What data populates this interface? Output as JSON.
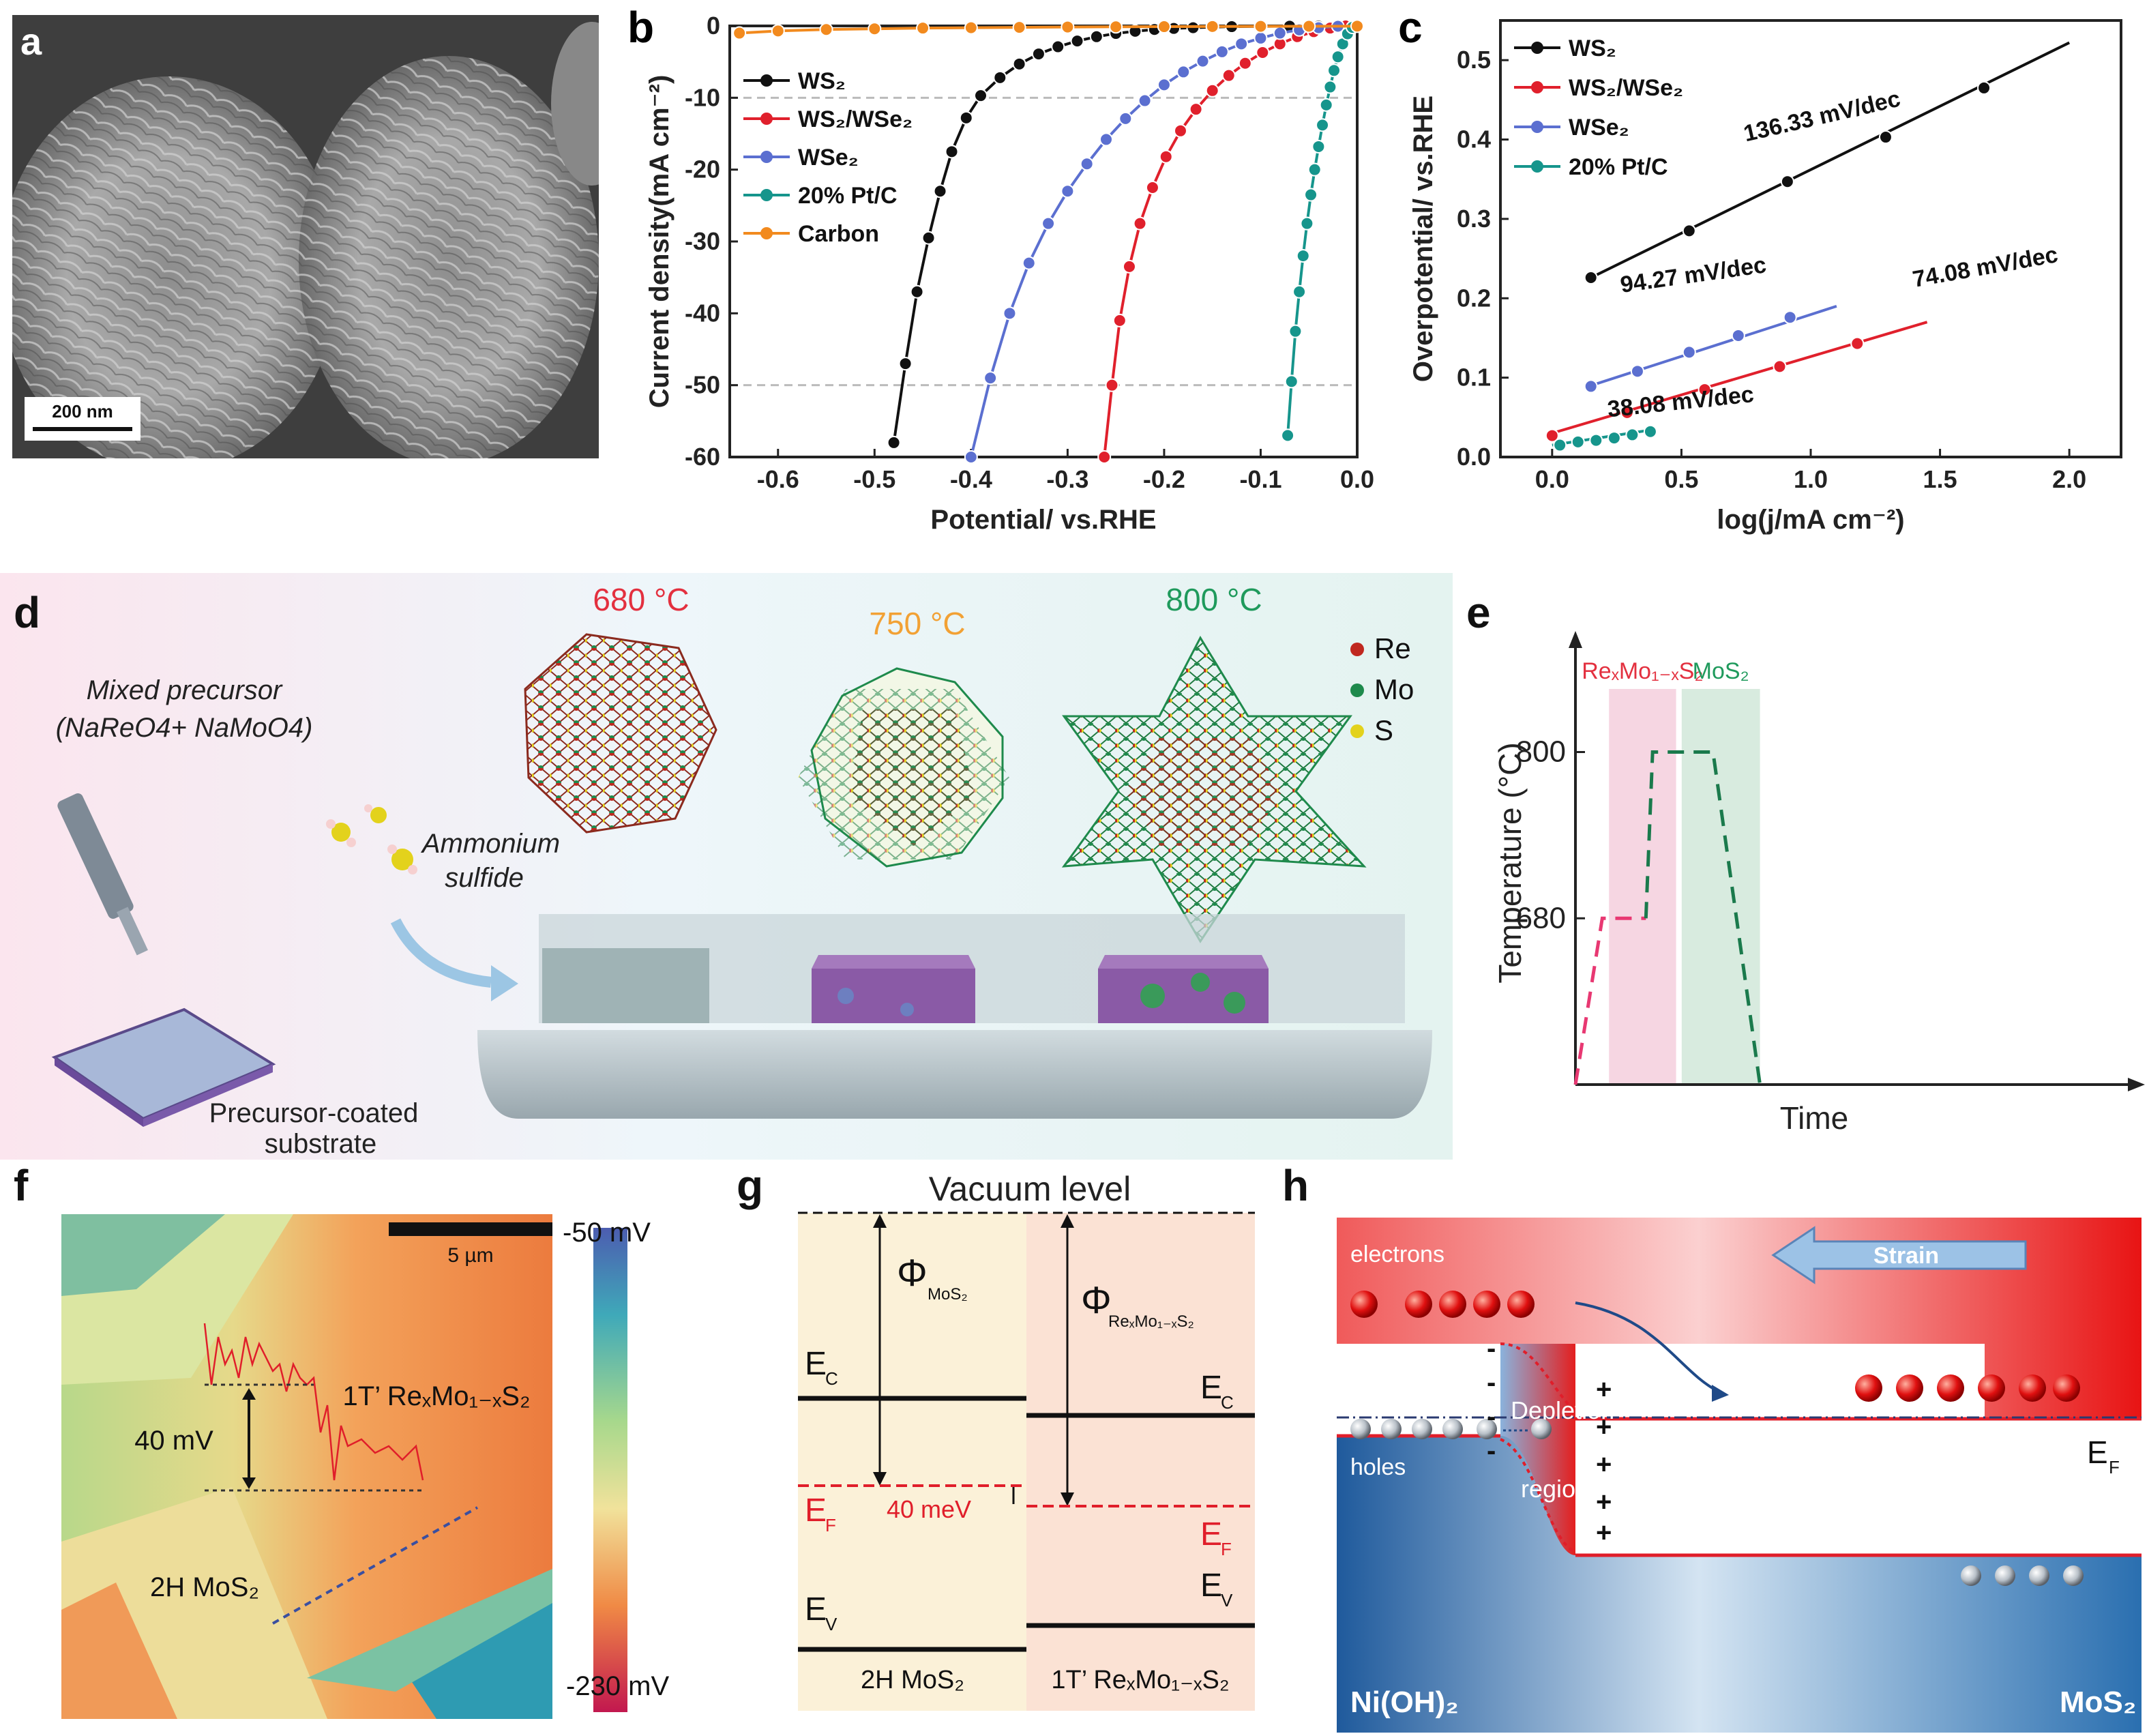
{
  "panels": {
    "a": {
      "label": "a",
      "scale_bar": "200 nm"
    },
    "b": {
      "label": "b"
    },
    "c": {
      "label": "c"
    },
    "d": {
      "label": "d",
      "temps": [
        "680 °C",
        "750 °C",
        "800 °C"
      ],
      "precursor_line1": "Mixed precursor",
      "precursor_line2": "(NaReO4+ NaMoO4)",
      "sulfide_line1": "Ammonium",
      "sulfide_line2": "sulfide",
      "substrate_line1": "Precursor-coated",
      "substrate_line2": "substrate",
      "legend": [
        {
          "label": "Re",
          "color": "#c0281f"
        },
        {
          "label": "Mo",
          "color": "#1e8a4c"
        },
        {
          "label": "S",
          "color": "#e3d21c"
        }
      ]
    },
    "e": {
      "label": "e"
    },
    "f": {
      "label": "f",
      "scale_bar": "5 µm",
      "cb_top": "-50 mV",
      "cb_bottom": "-230 mV",
      "phase_1t": "1T’ ReₓMo₁₋ₓS₂",
      "phase_2h": "2H MoS₂",
      "step": "40 mV"
    },
    "g": {
      "label": "g",
      "vacuum": "Vacuum level",
      "phi_mos2": "Φ",
      "phi_mos2_sub": "MoS₂",
      "phi_re": "Φ",
      "phi_re_sub": "ReₓMo₁₋ₓS₂",
      "ec": "E",
      "ec_sub": "C",
      "ef": "E",
      "ef_sub": "F",
      "ev": "E",
      "ev_sub": "V",
      "delta": "40 meV",
      "left_material": "2H MoS₂",
      "right_material": "1T’ ReₓMo₁₋ₓS₂"
    },
    "h": {
      "label": "h",
      "electrons": "electrons",
      "holes": "holes",
      "strain": "Strain",
      "depletion_line1": "Depletion",
      "depletion_line2": "region",
      "ef": "E",
      "ef_sub": "F",
      "left_material": "Ni(OH)₂",
      "right_material": "MoS₂"
    }
  },
  "chart_data": [
    {
      "id": "b",
      "type": "line",
      "xlabel": "Potential/ vs.RHE",
      "ylabel": "Current density(mA cm⁻²)",
      "xlim": [
        -0.65,
        0.0
      ],
      "ylim": [
        -60,
        0
      ],
      "xticks": [
        -0.6,
        -0.5,
        -0.4,
        -0.3,
        -0.2,
        -0.1,
        0.0
      ],
      "xtick_labels": [
        "-0.6",
        "-0.5",
        "-0.4",
        "-0.3",
        "-0.2",
        "-0.1",
        "0.0"
      ],
      "yticks": [
        0,
        -10,
        -20,
        -30,
        -40,
        -50,
        -60
      ],
      "ytick_labels": [
        "0",
        "-10",
        "-20",
        "-30",
        "-40",
        "-50",
        "-60"
      ],
      "reference_lines": [
        -10,
        -50
      ],
      "series": [
        {
          "name": "WS₂",
          "color": "#111111",
          "x": [
            -0.48,
            -0.468,
            -0.456,
            -0.444,
            -0.432,
            -0.42,
            -0.405,
            -0.39,
            -0.37,
            -0.35,
            -0.33,
            -0.31,
            -0.29,
            -0.27,
            -0.25,
            -0.23,
            -0.21,
            -0.19,
            -0.17,
            -0.15,
            -0.13,
            -0.1,
            -0.07,
            -0.04,
            -0.02
          ],
          "y": [
            -58,
            -47,
            -37,
            -29.5,
            -23,
            -17.5,
            -12.8,
            -9.7,
            -7.2,
            -5.3,
            -3.9,
            -2.9,
            -2.1,
            -1.5,
            -1.05,
            -0.75,
            -0.5,
            -0.35,
            -0.25,
            -0.17,
            -0.1,
            -0.06,
            -0.03,
            -0.01,
            0
          ]
        },
        {
          "name": "WS₂/WSe₂",
          "color": "#e0202c",
          "x": [
            -0.262,
            -0.254,
            -0.246,
            -0.236,
            -0.225,
            -0.212,
            -0.198,
            -0.183,
            -0.167,
            -0.15,
            -0.133,
            -0.116,
            -0.098,
            -0.08,
            -0.062,
            -0.045,
            -0.028,
            -0.012
          ],
          "y": [
            -60,
            -50,
            -41,
            -33.5,
            -27.5,
            -22.5,
            -18.2,
            -14.6,
            -11.6,
            -9,
            -6.9,
            -5.2,
            -3.7,
            -2.5,
            -1.5,
            -0.8,
            -0.3,
            0
          ]
        },
        {
          "name": "WSe₂",
          "color": "#5b6fd0",
          "x": [
            -0.4,
            -0.38,
            -0.36,
            -0.34,
            -0.32,
            -0.3,
            -0.28,
            -0.26,
            -0.24,
            -0.22,
            -0.2,
            -0.18,
            -0.16,
            -0.14,
            -0.12,
            -0.1,
            -0.08,
            -0.06,
            -0.04,
            -0.02
          ],
          "y": [
            -60,
            -49,
            -40,
            -33,
            -27.5,
            -23,
            -19.2,
            -15.8,
            -12.9,
            -10.4,
            -8.2,
            -6.4,
            -4.9,
            -3.6,
            -2.5,
            -1.7,
            -1.0,
            -0.55,
            -0.25,
            -0.05
          ]
        },
        {
          "name": "20% Pt/C",
          "color": "#16958c",
          "x": [
            -0.072,
            -0.068,
            -0.064,
            -0.06,
            -0.056,
            -0.052,
            -0.048,
            -0.044,
            -0.04,
            -0.036,
            -0.032,
            -0.028,
            -0.024,
            -0.02,
            -0.015,
            -0.01,
            -0.005
          ],
          "y": [
            -57,
            -49.5,
            -42.5,
            -37,
            -32,
            -27.5,
            -23.5,
            -20,
            -16.8,
            -13.8,
            -11,
            -8.5,
            -6.2,
            -4.3,
            -2.5,
            -1.1,
            -0.2
          ]
        },
        {
          "name": "Carbon",
          "color": "#f28a1e",
          "x": [
            -0.64,
            -0.6,
            -0.55,
            -0.5,
            -0.45,
            -0.4,
            -0.35,
            -0.3,
            -0.25,
            -0.2,
            -0.15,
            -0.1,
            -0.05,
            0.0
          ],
          "y": [
            -1.0,
            -0.7,
            -0.5,
            -0.4,
            -0.3,
            -0.25,
            -0.2,
            -0.15,
            -0.12,
            -0.1,
            -0.08,
            -0.06,
            -0.05,
            -0.03
          ]
        }
      ]
    },
    {
      "id": "c",
      "type": "line",
      "xlabel": "log(j/mA cm⁻²)",
      "ylabel": "Overpotential/ vs.RHE",
      "xlim": [
        -0.2,
        2.2
      ],
      "ylim": [
        0,
        0.55
      ],
      "xticks": [
        0.0,
        0.5,
        1.0,
        1.5,
        2.0
      ],
      "xtick_labels": [
        "0.0",
        "0.5",
        "1.0",
        "1.5",
        "2.0"
      ],
      "yticks": [
        0.0,
        0.1,
        0.2,
        0.3,
        0.4,
        0.5
      ],
      "ytick_labels": [
        "0.0",
        "0.1",
        "0.2",
        "0.3",
        "0.4",
        "0.5"
      ],
      "series": [
        {
          "name": "WS₂",
          "color": "#111111",
          "slope": "136.33 mV/dec",
          "line": [
            [
              0.15,
              0.226
            ],
            [
              2.0,
              0.522
            ]
          ],
          "x": [
            0.15,
            0.53,
            0.91,
            1.29,
            1.67
          ],
          "y": [
            0.226,
            0.285,
            0.347,
            0.403,
            0.465
          ]
        },
        {
          "name": "WS₂/WSe₂",
          "color": "#e0202c",
          "slope": "74.08 mV/dec",
          "line": [
            [
              0.0,
              0.03
            ],
            [
              1.45,
              0.17
            ]
          ],
          "x": [
            0.0,
            0.29,
            0.59,
            0.88,
            1.18
          ],
          "y": [
            0.027,
            0.056,
            0.085,
            0.114,
            0.143
          ]
        },
        {
          "name": "WSe₂",
          "color": "#5b6fd0",
          "slope": "94.27 mV/dec",
          "line": [
            [
              0.15,
              0.09
            ],
            [
              1.1,
              0.19
            ]
          ],
          "x": [
            0.15,
            0.33,
            0.53,
            0.72,
            0.92
          ],
          "y": [
            0.089,
            0.108,
            0.132,
            0.153,
            0.176
          ]
        },
        {
          "name": "20% Pt/C",
          "color": "#16958c",
          "slope": "38.08 mV/dec",
          "line": [
            [
              0.0,
              0.015
            ],
            [
              0.4,
              0.035
            ]
          ],
          "x": [
            0.03,
            0.1,
            0.17,
            0.24,
            0.31,
            0.38
          ],
          "y": [
            0.015,
            0.019,
            0.021,
            0.024,
            0.028,
            0.032
          ]
        }
      ]
    },
    {
      "id": "e",
      "type": "line",
      "xlabel": "Time",
      "ylabel": "Temperature (°C)",
      "ytick_labels": [
        "800",
        "680"
      ],
      "yticks": [
        800,
        680
      ],
      "ylim": [
        560,
        880
      ],
      "phases": [
        {
          "label": "ReₓMo₁₋ₓS₂",
          "color": "#f6d6e2",
          "text_color": "#e3303f"
        },
        {
          "label": "MoS₂",
          "color": "#d8ebdf",
          "text_color": "#1f9a5c"
        }
      ],
      "series": [
        {
          "name": "ReₓMo₁₋ₓS₂",
          "color": "#e83872",
          "x": [
            0.0,
            0.08,
            0.14,
            0.21
          ],
          "y": [
            560,
            680,
            680,
            680
          ]
        },
        {
          "name": "MoS₂",
          "color": "#1a7a4c",
          "x": [
            0.21,
            0.23,
            0.37,
            0.41,
            0.55
          ],
          "y": [
            680,
            800,
            800,
            800,
            560
          ]
        }
      ]
    }
  ]
}
